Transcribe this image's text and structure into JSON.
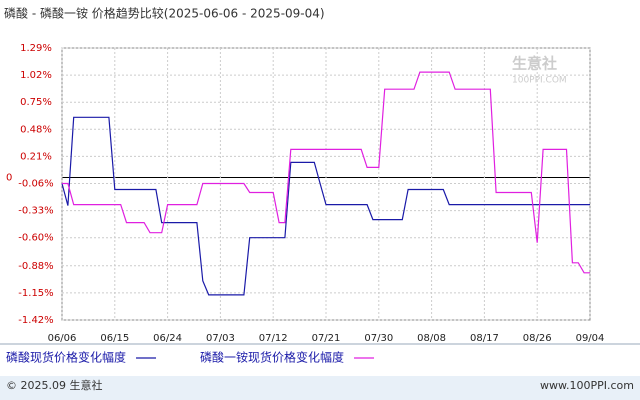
{
  "chart_data": {
    "type": "line",
    "title": "磷酸 - 磷酸一铵 价格趋势比较(2025-06-06 - 2025-09-04)",
    "watermark": "生意社",
    "watermark_url": "100PPI.COM",
    "footer_left": "© 2025.09 生意社",
    "footer_right": "www.100PPI.com",
    "categories": [
      "06/06",
      null,
      null,
      null,
      null,
      null,
      null,
      null,
      null,
      "06/15",
      null,
      null,
      null,
      null,
      null,
      null,
      null,
      null,
      "06/24",
      null,
      null,
      null,
      null,
      null,
      null,
      null,
      null,
      "07/03",
      null,
      null,
      null,
      null,
      null,
      null,
      null,
      null,
      "07/12",
      null,
      null,
      null,
      null,
      null,
      null,
      null,
      null,
      "07/21",
      null,
      null,
      null,
      null,
      null,
      null,
      null,
      null,
      "07/30",
      null,
      null,
      null,
      null,
      null,
      null,
      null,
      null,
      "08/08",
      null,
      null,
      null,
      null,
      null,
      null,
      null,
      null,
      "08/17",
      null,
      null,
      null,
      null,
      null,
      null,
      null,
      null,
      "08/26",
      null,
      null,
      null,
      null,
      null,
      null,
      null,
      null,
      "09/04"
    ],
    "series": [
      {
        "name": "磷酸现货价格变化幅度",
        "color": "#1a1aa8",
        "values": [
          -0.06,
          -0.28,
          0.6,
          0.6,
          0.6,
          0.6,
          0.6,
          0.6,
          0.6,
          -0.12,
          -0.12,
          -0.12,
          -0.12,
          -0.12,
          -0.12,
          -0.12,
          -0.12,
          -0.45,
          -0.45,
          -0.45,
          -0.45,
          -0.45,
          -0.45,
          -0.45,
          -1.03,
          -1.17,
          -1.17,
          -1.17,
          -1.17,
          -1.17,
          -1.17,
          -1.17,
          -0.6,
          -0.6,
          -0.6,
          -0.6,
          -0.6,
          -0.6,
          -0.6,
          0.15,
          0.15,
          0.15,
          0.15,
          0.15,
          -0.06,
          -0.27,
          -0.27,
          -0.27,
          -0.27,
          -0.27,
          -0.27,
          -0.27,
          -0.27,
          -0.42,
          -0.42,
          -0.42,
          -0.42,
          -0.42,
          -0.42,
          -0.12,
          -0.12,
          -0.12,
          -0.12,
          -0.12,
          -0.12,
          -0.12,
          -0.27,
          -0.27,
          -0.27,
          -0.27,
          -0.27,
          -0.27,
          -0.27,
          -0.27,
          -0.27,
          -0.27,
          -0.27,
          -0.27,
          -0.27,
          -0.27,
          -0.27,
          -0.27,
          -0.27,
          -0.27,
          -0.27,
          -0.27,
          -0.27,
          -0.27,
          -0.27,
          -0.27,
          -0.27
        ]
      },
      {
        "name": "磷酸一铵现货价格变化幅度",
        "color": "#e020e0",
        "values": [
          -0.06,
          -0.06,
          -0.27,
          -0.27,
          -0.27,
          -0.27,
          -0.27,
          -0.27,
          -0.27,
          -0.27,
          -0.27,
          -0.45,
          -0.45,
          -0.45,
          -0.45,
          -0.55,
          -0.55,
          -0.55,
          -0.27,
          -0.27,
          -0.27,
          -0.27,
          -0.27,
          -0.27,
          -0.06,
          -0.06,
          -0.06,
          -0.06,
          -0.06,
          -0.06,
          -0.06,
          -0.06,
          -0.15,
          -0.15,
          -0.15,
          -0.15,
          -0.15,
          -0.45,
          -0.45,
          0.28,
          0.28,
          0.28,
          0.28,
          0.28,
          0.28,
          0.28,
          0.28,
          0.28,
          0.28,
          0.28,
          0.28,
          0.28,
          0.1,
          0.1,
          0.1,
          0.88,
          0.88,
          0.88,
          0.88,
          0.88,
          0.88,
          1.05,
          1.05,
          1.05,
          1.05,
          1.05,
          1.05,
          0.88,
          0.88,
          0.88,
          0.88,
          0.88,
          0.88,
          0.88,
          -0.15,
          -0.15,
          -0.15,
          -0.15,
          -0.15,
          -0.15,
          -0.15,
          -0.65,
          0.28,
          0.28,
          0.28,
          0.28,
          0.28,
          -0.85,
          -0.85,
          -0.95,
          -0.95
        ]
      }
    ],
    "ylim": [
      -1.42,
      1.29
    ],
    "yticks": [
      {
        "value": -1.42,
        "label": "-1.42%"
      },
      {
        "value": -1.15,
        "label": "-1.15%"
      },
      {
        "value": -0.88,
        "label": "-0.88%"
      },
      {
        "value": -0.6,
        "label": "-0.60%"
      },
      {
        "value": -0.33,
        "label": "-0.33%"
      },
      {
        "value": -0.06,
        "label": "-0.06%"
      },
      0,
      {
        "value": 0.21,
        "label": "0.21%"
      },
      {
        "value": 0.48,
        "label": "0.48%"
      },
      {
        "value": 0.75,
        "label": "0.75%"
      },
      {
        "value": 1.02,
        "label": "1.02%"
      },
      {
        "value": 1.29,
        "label": "1.29%"
      }
    ],
    "grid": true
  }
}
